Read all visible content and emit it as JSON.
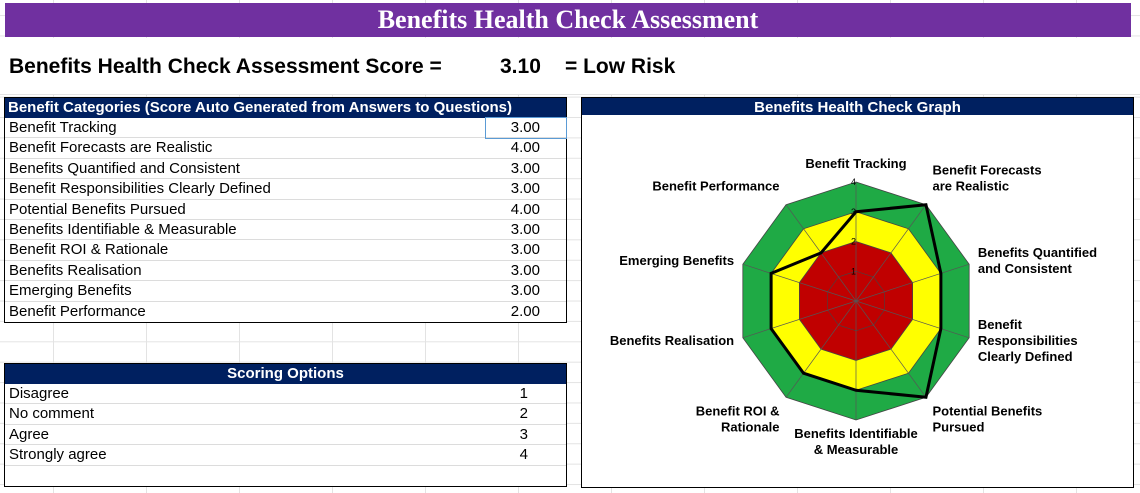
{
  "title": "Benefits Health Check Assessment",
  "score": {
    "label": "Benefits Health Check Assessment Score =",
    "value": "3.10",
    "result": "= Low Risk"
  },
  "categories_table": {
    "header": "Benefit Categories (Score Auto Generated from Answers to Questions)",
    "rows": [
      {
        "label": "Benefit Tracking",
        "score": "3.00"
      },
      {
        "label": "Benefit Forecasts are Realistic",
        "score": "4.00"
      },
      {
        "label": "Benefits Quantified and Consistent",
        "score": "3.00"
      },
      {
        "label": "Benefit Responsibilities Clearly Defined",
        "score": "3.00"
      },
      {
        "label": "Potential Benefits Pursued",
        "score": "4.00"
      },
      {
        "label": "Benefits Identifiable & Measurable",
        "score": "3.00"
      },
      {
        "label": "Benefit ROI & Rationale",
        "score": "3.00"
      },
      {
        "label": "Benefits Realisation",
        "score": "3.00"
      },
      {
        "label": "Emerging Benefits",
        "score": "3.00"
      },
      {
        "label": "Benefit Performance",
        "score": "2.00"
      }
    ]
  },
  "scoring_options": {
    "header": "Scoring Options",
    "rows": [
      {
        "label": "Disagree",
        "value": "1"
      },
      {
        "label": "No comment",
        "value": "2"
      },
      {
        "label": "Agree",
        "value": "3"
      },
      {
        "label": "Strongly agree",
        "value": "4"
      }
    ]
  },
  "colors": {
    "banner": "#7030a0",
    "header": "#002060",
    "ring_outer": "#1faa45",
    "ring_mid": "#ffff00",
    "ring_inner": "#c00000",
    "series_line": "#000000"
  },
  "chart_data": {
    "type": "radar",
    "title": "Benefits Health Check Graph",
    "categories": [
      "Benefit Tracking",
      "Benefit Forecasts are Realistic",
      "Benefits Quantified and Consistent",
      "Benefit Responsibilities Clearly Defined",
      "Potential Benefits Pursued",
      "Benefits Identifiable & Measurable",
      "Benefit ROI & Rationale",
      "Benefits Realisation",
      "Emerging Benefits",
      "Benefit Performance"
    ],
    "axis_labels": [
      [
        "Benefit Tracking"
      ],
      [
        "Benefit Forecasts",
        "are Realistic"
      ],
      [
        "Benefits Quantified",
        "and Consistent"
      ],
      [
        "Benefit",
        "Responsibilities",
        "Clearly Defined"
      ],
      [
        "Potential Benefits",
        "Pursued"
      ],
      [
        "Benefits Identifiable",
        "& Measurable"
      ],
      [
        "Benefit ROI &",
        "Rationale"
      ],
      [
        "Benefits Realisation"
      ],
      [
        "Emerging Benefits"
      ],
      [
        "Benefit Performance"
      ]
    ],
    "series": [
      {
        "values": [
          3,
          4,
          3,
          3,
          4,
          3,
          3,
          3,
          3,
          2
        ]
      }
    ],
    "rings": [
      {
        "value": 4,
        "color": "#1faa45"
      },
      {
        "value": 3,
        "color": "#ffff00"
      },
      {
        "value": 2,
        "color": "#c00000"
      }
    ],
    "ticks": [
      "1",
      "2",
      "3",
      "4"
    ],
    "range": [
      0,
      4
    ]
  }
}
